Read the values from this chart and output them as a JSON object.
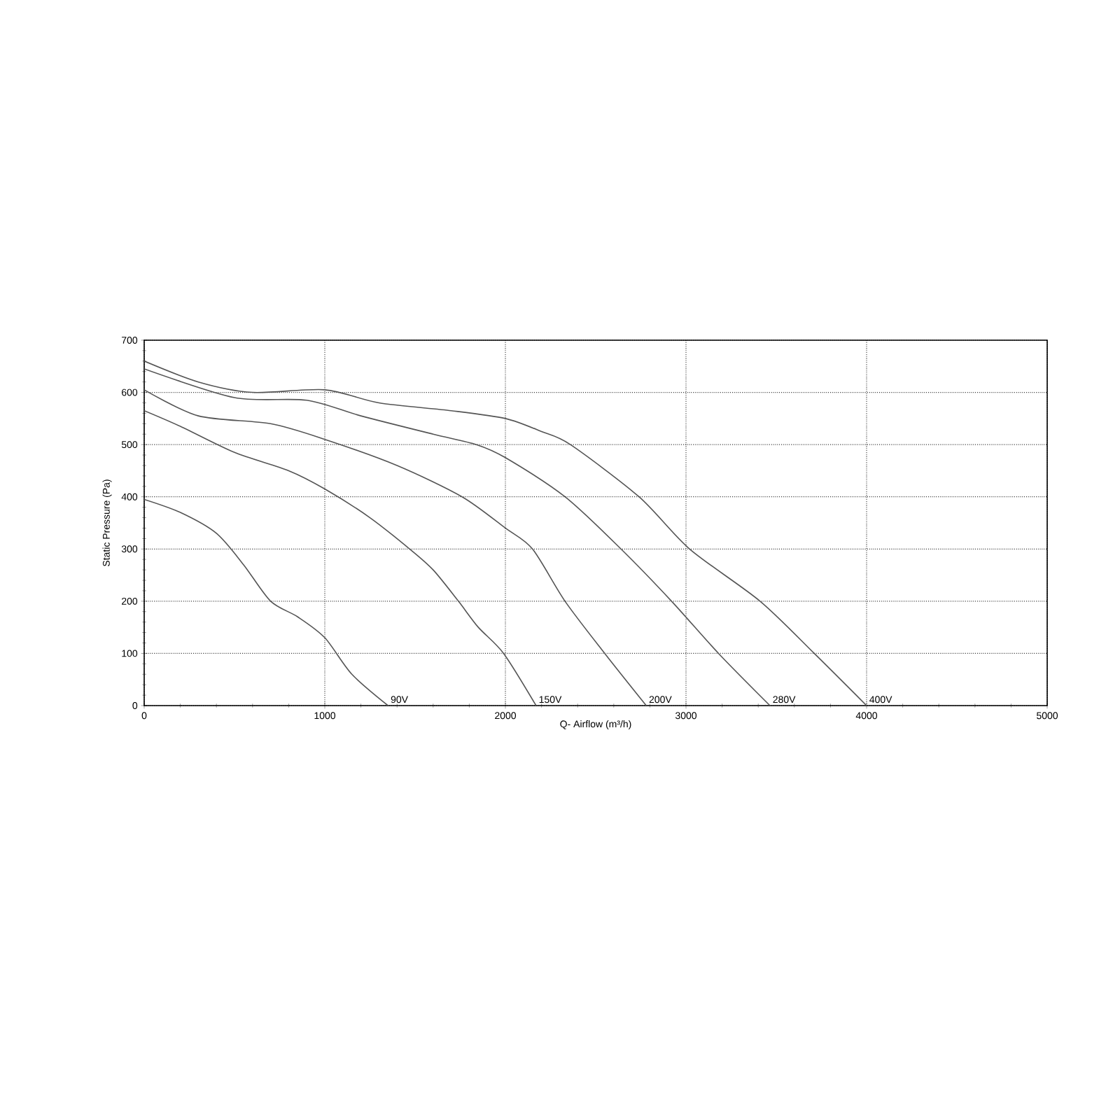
{
  "chart_data": {
    "type": "line",
    "xlabel": "Q- Airflow (m³/h)",
    "ylabel": "Static Pressure (Pa)",
    "xlim": [
      0,
      5000
    ],
    "xticks": [
      0,
      1000,
      2000,
      3000,
      4000,
      5000
    ],
    "ylim": [
      0,
      700
    ],
    "yticks": [
      0,
      100,
      200,
      300,
      400,
      500,
      600,
      700
    ],
    "grid": true,
    "marker": "none",
    "line_style": "solid",
    "series": [
      {
        "name": "90V",
        "color": "#555555",
        "x": [
          0,
          200,
          400,
          550,
          700,
          850,
          1000,
          1150,
          1350
        ],
        "values": [
          395,
          370,
          330,
          270,
          200,
          170,
          130,
          60,
          0
        ]
      },
      {
        "name": "150V",
        "color": "#555555",
        "x": [
          0,
          200,
          500,
          800,
          1000,
          1250,
          1470,
          1600,
          1740,
          1850,
          1990,
          2170
        ],
        "values": [
          565,
          535,
          485,
          450,
          415,
          360,
          300,
          260,
          200,
          150,
          100,
          0
        ]
      },
      {
        "name": "200V",
        "color": "#555555",
        "x": [
          0,
          300,
          700,
          1000,
          1400,
          1760,
          2000,
          2150,
          2330,
          2550,
          2780
        ],
        "values": [
          605,
          555,
          540,
          510,
          460,
          400,
          340,
          300,
          200,
          100,
          0
        ]
      },
      {
        "name": "280V",
        "color": "#555555",
        "x": [
          0,
          500,
          900,
          1200,
          1600,
          1840,
          2000,
          2330,
          2640,
          2920,
          3180,
          3465
        ],
        "values": [
          645,
          590,
          585,
          555,
          520,
          500,
          475,
          400,
          300,
          200,
          100,
          0
        ]
      },
      {
        "name": "400V",
        "color": "#555555",
        "x": [
          0,
          300,
          600,
          1000,
          1300,
          1700,
          2000,
          2200,
          2360,
          2740,
          3020,
          3410,
          3710,
          4000
        ],
        "values": [
          660,
          620,
          600,
          605,
          580,
          565,
          550,
          525,
          500,
          400,
          300,
          200,
          100,
          0
        ]
      }
    ]
  }
}
